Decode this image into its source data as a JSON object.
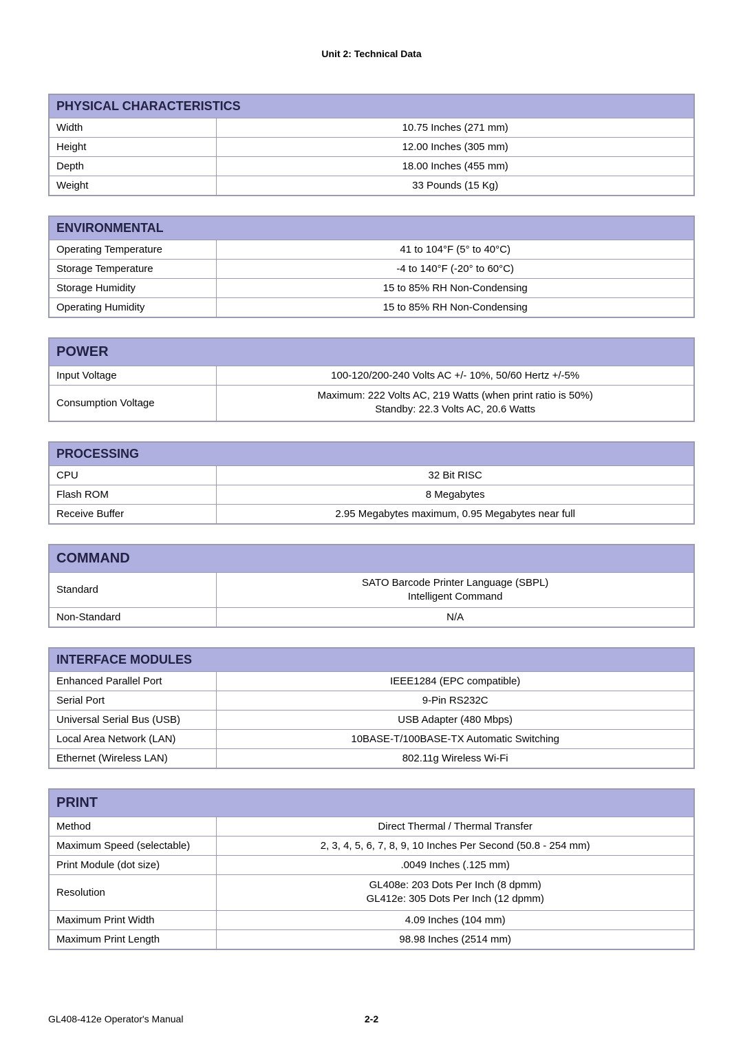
{
  "header": {
    "unit": "Unit 2:  Technical Data"
  },
  "tables": {
    "physical": {
      "title": "PHYSICAL CHARACTERISTICS",
      "rows": [
        {
          "label": "Width",
          "value": "10.75 Inches (271 mm)"
        },
        {
          "label": "Height",
          "value": "12.00 Inches (305 mm)"
        },
        {
          "label": "Depth",
          "value": "18.00 Inches (455 mm)"
        },
        {
          "label": "Weight",
          "value": "33 Pounds (15 Kg)"
        }
      ]
    },
    "environmental": {
      "title": "ENVIRONMENTAL",
      "rows": [
        {
          "label": "Operating Temperature",
          "value": "41 to 104°F (5° to 40°C)"
        },
        {
          "label": "Storage Temperature",
          "value": "-4 to 140°F (-20° to 60°C)"
        },
        {
          "label": "Storage Humidity",
          "value": "15 to 85% RH Non-Condensing"
        },
        {
          "label": "Operating Humidity",
          "value": "15 to 85% RH Non-Condensing"
        }
      ]
    },
    "power": {
      "title": "POWER",
      "rows": [
        {
          "label": "Input Voltage",
          "value": "100-120/200-240 Volts AC +/- 10%, 50/60 Hertz +/-5%"
        },
        {
          "label": "Consumption Voltage",
          "value": "Maximum: 222 Volts AC, 219 Watts (when print ratio is 50%)\nStandby: 22.3 Volts AC, 20.6 Watts"
        }
      ]
    },
    "processing": {
      "title": "PROCESSING",
      "rows": [
        {
          "label": "CPU",
          "value": "32 Bit RISC"
        },
        {
          "label": "Flash ROM",
          "value": "8 Megabytes"
        },
        {
          "label": "Receive Buffer",
          "value": "2.95 Megabytes maximum, 0.95 Megabytes near full"
        }
      ]
    },
    "command": {
      "title": "COMMAND",
      "rows": [
        {
          "label": "Standard",
          "value": "SATO Barcode Printer Language (SBPL)\nIntelligent Command"
        },
        {
          "label": "Non-Standard",
          "value": "N/A"
        }
      ]
    },
    "interface": {
      "title": "INTERFACE MODULES",
      "rows": [
        {
          "label": "Enhanced Parallel Port",
          "value": "IEEE1284 (EPC compatible)"
        },
        {
          "label": "Serial Port",
          "value": "9-Pin RS232C"
        },
        {
          "label": "Universal Serial Bus (USB)",
          "value": "USB Adapter (480 Mbps)"
        },
        {
          "label": "Local Area Network (LAN)",
          "value": "10BASE-T/100BASE-TX Automatic Switching"
        },
        {
          "label": "Ethernet (Wireless LAN)",
          "value": "802.11g Wireless Wi-Fi"
        }
      ]
    },
    "print": {
      "title": "PRINT",
      "rows": [
        {
          "label": "Method",
          "value": "Direct Thermal / Thermal Transfer"
        },
        {
          "label": "Maximum Speed (selectable)",
          "value": "2, 3, 4, 5, 6, 7, 8, 9, 10 Inches Per Second (50.8 - 254 mm)"
        },
        {
          "label": "Print Module (dot size)",
          "value": ".0049 Inches (.125 mm)"
        },
        {
          "label": "Resolution",
          "value": "GL408e: 203 Dots Per Inch (8 dpmm)\nGL412e: 305  Dots Per Inch (12 dpmm)"
        },
        {
          "label": "Maximum Print Width",
          "value": "4.09 Inches (104 mm)"
        },
        {
          "label": "Maximum Print Length",
          "value": "98.98 Inches (2514 mm)"
        }
      ]
    }
  },
  "footer": {
    "left": "GL408-412e Operator's Manual",
    "page": "2-2"
  },
  "colors": {
    "header_bg": "#b0b0e0",
    "border": "#9a9ab2",
    "text": "#000000"
  }
}
